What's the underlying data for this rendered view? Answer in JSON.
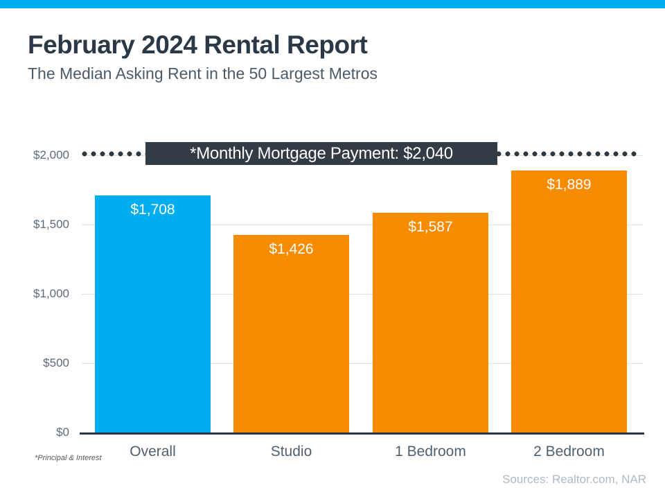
{
  "page": {
    "accent_bar_color": "#00AEEF",
    "background_color": "#ffffff"
  },
  "header": {
    "title": "February 2024 Rental Report",
    "subtitle": "The Median Asking Rent in the 50 Largest Metros"
  },
  "chart_data": {
    "type": "bar",
    "title": "February 2024 Rental Report",
    "subtitle": "The Median Asking Rent in the 50 Largest Metros",
    "categories": [
      "Overall",
      "Studio",
      "1 Bedroom",
      "2 Bedroom"
    ],
    "values": [
      1708,
      1426,
      1587,
      1889
    ],
    "value_labels": [
      "$1,708",
      "$1,426",
      "$1,587",
      "$1,889"
    ],
    "bar_colors": [
      "#00AEEF",
      "#F88C00",
      "#F88C00",
      "#F88C00"
    ],
    "ylim": [
      0,
      2000
    ],
    "yticks": [
      0,
      500,
      1000,
      1500,
      2000
    ],
    "ytick_labels": [
      "$0",
      "$500",
      "$1,000",
      "$1,500",
      "$2,000"
    ],
    "grid": "horizontal",
    "legend": "none",
    "reference_line": {
      "label": "*Monthly Mortgage Payment: $2,040",
      "value": 2040,
      "style": "dotted",
      "color": "#2e3842",
      "label_background": "#333b44"
    }
  },
  "footer": {
    "footnote": "*Principal & Interest",
    "sources": "Sources: Realtor.com,  NAR"
  }
}
